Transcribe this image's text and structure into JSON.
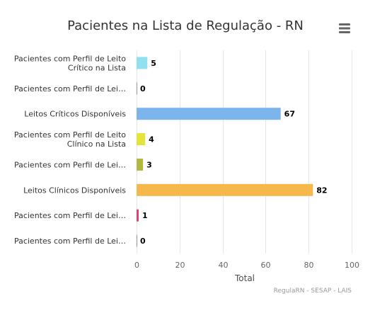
{
  "chart_data": {
    "type": "bar",
    "orientation": "horizontal",
    "title": "Pacientes na Lista de Regulação - RN",
    "xlabel": "Total",
    "categories": [
      [
        "Pacientes com Perfil de Leito",
        "Crítico na Lista"
      ],
      [
        "Pacientes com Perfil de Lei…"
      ],
      [
        "Leitos Críticos Disponíveis"
      ],
      [
        "Pacientes com Perfil de Leito",
        "Clínico na Lista"
      ],
      [
        "Pacientes com Perfil de Lei…"
      ],
      [
        "Leitos Clínicos Disponíveis"
      ],
      [
        "Pacientes com Perfil de Lei…"
      ],
      [
        "Pacientes com Perfil de Lei…"
      ]
    ],
    "values": [
      5,
      0,
      67,
      4,
      3,
      82,
      1,
      0
    ],
    "colors": [
      "#90e1ef",
      "#434348",
      "#7cb5ec",
      "#e4e43a",
      "#b5b840",
      "#f7b84b",
      "#e63d6a",
      "#434348"
    ],
    "xlim": [
      0,
      100
    ],
    "ticks": [
      0,
      20,
      40,
      60,
      80,
      100
    ],
    "grid": true,
    "legend": "none",
    "credits": "RegulaRN - SESAP - LAIS"
  },
  "menu_icon": "hamburger-menu-icon"
}
